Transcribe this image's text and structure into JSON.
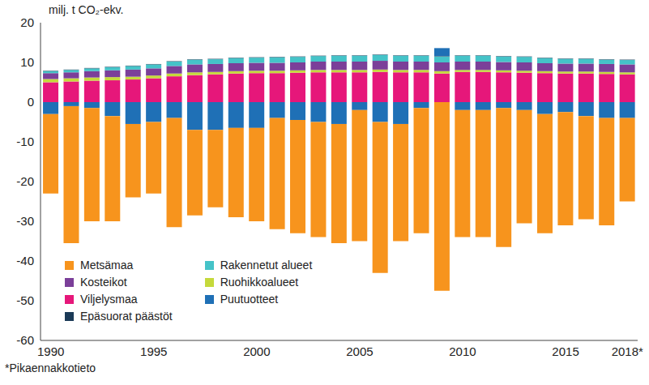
{
  "chart_data": {
    "type": "bar",
    "stacked": true,
    "y_label": "milj. t CO₂-ekv.",
    "footnote": "*Pikaennakkotieto",
    "categories": [
      "1990",
      null,
      null,
      null,
      null,
      "1995",
      null,
      null,
      null,
      null,
      "2000",
      null,
      null,
      null,
      null,
      "2005",
      null,
      null,
      null,
      null,
      "2010",
      null,
      null,
      null,
      null,
      "2015",
      null,
      null,
      "2018*"
    ],
    "ylim": [
      -60,
      20
    ],
    "yticks": [
      -60,
      -50,
      -40,
      -30,
      -20,
      -10,
      0,
      10,
      20
    ],
    "grid": false,
    "legend": "lower left",
    "series": [
      {
        "name": "Metsämaa",
        "color": "#f7941d",
        "values": [
          -20,
          -34.5,
          -28.5,
          -26.5,
          -18.5,
          -18,
          -27.5,
          -21.5,
          -19.5,
          -22.5,
          -23.5,
          -28,
          -28.5,
          -29,
          -30,
          -33,
          -38,
          -29.5,
          -31.5,
          -47.5,
          -32,
          -32,
          -35,
          -28.5,
          -30,
          -28.5,
          -26,
          -27,
          -21
        ]
      },
      {
        "name": "Rakennetut alueet",
        "color": "#45c3c8",
        "values": [
          0.5,
          0.6,
          0.7,
          0.8,
          0.9,
          1,
          1.1,
          1.2,
          1.2,
          1.3,
          1.3,
          1.4,
          1.4,
          1.4,
          1.5,
          1.5,
          1.5,
          1.5,
          1.5,
          1.5,
          1.5,
          1.5,
          1.4,
          1.4,
          1.3,
          1.2,
          1.2,
          1.1,
          1.1
        ]
      },
      {
        "name": "Kosteikot",
        "color": "#7b3f99",
        "values": [
          1.5,
          1.5,
          1.6,
          1.7,
          1.8,
          1.8,
          1.9,
          2,
          2,
          2,
          2,
          2,
          2,
          2.1,
          2.1,
          2.1,
          2.2,
          2.1,
          2.1,
          2.2,
          2.1,
          2.1,
          2.1,
          2.1,
          2,
          2,
          2,
          2,
          2
        ]
      },
      {
        "name": "Ruohikkoalueet",
        "color": "#c5d93b",
        "values": [
          0.8,
          0.8,
          0.8,
          0.8,
          0.7,
          0.7,
          0.7,
          0.7,
          0.6,
          0.6,
          0.6,
          0.6,
          0.6,
          0.6,
          0.6,
          0.6,
          0.6,
          0.6,
          0.6,
          0.6,
          0.5,
          0.5,
          0.5,
          0.5,
          0.5,
          0.5,
          0.5,
          0.5,
          0.5
        ]
      },
      {
        "name": "Viljelysmaa",
        "color": "#e6177a",
        "values": [
          5,
          5.2,
          5.4,
          5.5,
          5.7,
          6,
          6.5,
          6.8,
          7,
          7.2,
          7.3,
          7.3,
          7.4,
          7.5,
          7.5,
          7.5,
          7.6,
          7.5,
          7.5,
          7.2,
          7.6,
          7.6,
          7.5,
          7.4,
          7.3,
          7.2,
          7.2,
          7.1,
          7
        ]
      },
      {
        "name": "Puutuotteet",
        "color": "#1f70b6",
        "values": [
          -3,
          -1,
          -1.5,
          -3.5,
          -5.5,
          -5,
          -4,
          -7,
          -7,
          -6.5,
          -6.5,
          -4,
          -4.5,
          -5,
          -5.5,
          -2,
          -5,
          -5.5,
          -1.5,
          2,
          -2,
          -2,
          -1.5,
          -2,
          -3,
          -2.5,
          -3.5,
          -4,
          -4
        ]
      },
      {
        "name": "Epäsuorat päästöt",
        "color": "#1b3a57",
        "values": [
          0.1,
          0.1,
          0.1,
          0.1,
          0.1,
          0.1,
          0.1,
          0.1,
          0.1,
          0.1,
          0.1,
          0.1,
          0.1,
          0.1,
          0.1,
          0.1,
          0.1,
          0.1,
          0.1,
          0.1,
          0.1,
          0.1,
          0.1,
          0.1,
          0.1,
          0.1,
          0.1,
          0.1,
          0.1
        ]
      }
    ]
  }
}
